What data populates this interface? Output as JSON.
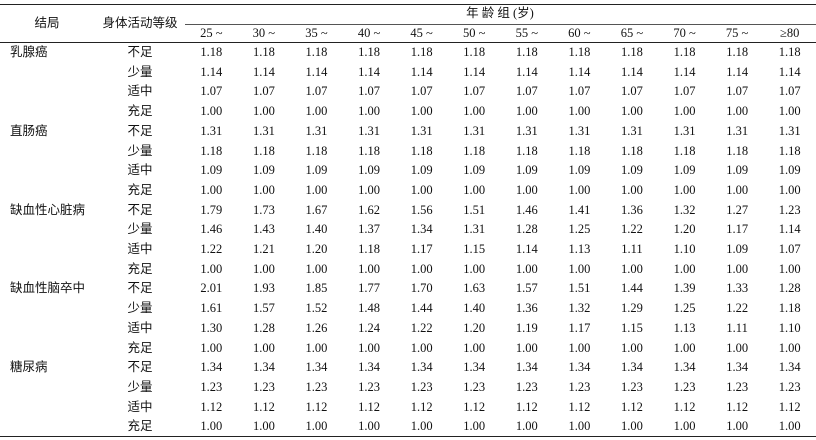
{
  "header": {
    "outcome": "结局",
    "level": "身体活动等级",
    "age_group": "年 龄 组 (岁)",
    "ages": [
      "25 ~",
      "30 ~",
      "35 ~",
      "40 ~",
      "45 ~",
      "50 ~",
      "55 ~",
      "60 ~",
      "65 ~",
      "70 ~",
      "75 ~",
      "≥80"
    ]
  },
  "table": {
    "rows": [
      {
        "outcome": "乳腺癌",
        "levels": [
          {
            "level": "不足",
            "values": [
              "1.18",
              "1.18",
              "1.18",
              "1.18",
              "1.18",
              "1.18",
              "1.18",
              "1.18",
              "1.18",
              "1.18",
              "1.18",
              "1.18"
            ]
          },
          {
            "level": "少量",
            "values": [
              "1.14",
              "1.14",
              "1.14",
              "1.14",
              "1.14",
              "1.14",
              "1.14",
              "1.14",
              "1.14",
              "1.14",
              "1.14",
              "1.14"
            ]
          },
          {
            "level": "适中",
            "values": [
              "1.07",
              "1.07",
              "1.07",
              "1.07",
              "1.07",
              "1.07",
              "1.07",
              "1.07",
              "1.07",
              "1.07",
              "1.07",
              "1.07"
            ]
          },
          {
            "level": "充足",
            "values": [
              "1.00",
              "1.00",
              "1.00",
              "1.00",
              "1.00",
              "1.00",
              "1.00",
              "1.00",
              "1.00",
              "1.00",
              "1.00",
              "1.00"
            ]
          }
        ]
      },
      {
        "outcome": "直肠癌",
        "levels": [
          {
            "level": "不足",
            "values": [
              "1.31",
              "1.31",
              "1.31",
              "1.31",
              "1.31",
              "1.31",
              "1.31",
              "1.31",
              "1.31",
              "1.31",
              "1.31",
              "1.31"
            ]
          },
          {
            "level": "少量",
            "values": [
              "1.18",
              "1.18",
              "1.18",
              "1.18",
              "1.18",
              "1.18",
              "1.18",
              "1.18",
              "1.18",
              "1.18",
              "1.18",
              "1.18"
            ]
          },
          {
            "level": "适中",
            "values": [
              "1.09",
              "1.09",
              "1.09",
              "1.09",
              "1.09",
              "1.09",
              "1.09",
              "1.09",
              "1.09",
              "1.09",
              "1.09",
              "1.09"
            ]
          },
          {
            "level": "充足",
            "values": [
              "1.00",
              "1.00",
              "1.00",
              "1.00",
              "1.00",
              "1.00",
              "1.00",
              "1.00",
              "1.00",
              "1.00",
              "1.00",
              "1.00"
            ]
          }
        ]
      },
      {
        "outcome": "缺血性心脏病",
        "levels": [
          {
            "level": "不足",
            "values": [
              "1.79",
              "1.73",
              "1.67",
              "1.62",
              "1.56",
              "1.51",
              "1.46",
              "1.41",
              "1.36",
              "1.32",
              "1.27",
              "1.23"
            ]
          },
          {
            "level": "少量",
            "values": [
              "1.46",
              "1.43",
              "1.40",
              "1.37",
              "1.34",
              "1.31",
              "1.28",
              "1.25",
              "1.22",
              "1.20",
              "1.17",
              "1.14"
            ]
          },
          {
            "level": "适中",
            "values": [
              "1.22",
              "1.21",
              "1.20",
              "1.18",
              "1.17",
              "1.15",
              "1.14",
              "1.13",
              "1.11",
              "1.10",
              "1.09",
              "1.07"
            ]
          },
          {
            "level": "充足",
            "values": [
              "1.00",
              "1.00",
              "1.00",
              "1.00",
              "1.00",
              "1.00",
              "1.00",
              "1.00",
              "1.00",
              "1.00",
              "1.00",
              "1.00"
            ]
          }
        ]
      },
      {
        "outcome": "缺血性脑卒中",
        "levels": [
          {
            "level": "不足",
            "values": [
              "2.01",
              "1.93",
              "1.85",
              "1.77",
              "1.70",
              "1.63",
              "1.57",
              "1.51",
              "1.44",
              "1.39",
              "1.33",
              "1.28"
            ]
          },
          {
            "level": "少量",
            "values": [
              "1.61",
              "1.57",
              "1.52",
              "1.48",
              "1.44",
              "1.40",
              "1.36",
              "1.32",
              "1.29",
              "1.25",
              "1.22",
              "1.18"
            ]
          },
          {
            "level": "适中",
            "values": [
              "1.30",
              "1.28",
              "1.26",
              "1.24",
              "1.22",
              "1.20",
              "1.19",
              "1.17",
              "1.15",
              "1.13",
              "1.11",
              "1.10"
            ]
          },
          {
            "level": "充足",
            "values": [
              "1.00",
              "1.00",
              "1.00",
              "1.00",
              "1.00",
              "1.00",
              "1.00",
              "1.00",
              "1.00",
              "1.00",
              "1.00",
              "1.00"
            ]
          }
        ]
      },
      {
        "outcome": "糖尿病",
        "levels": [
          {
            "level": "不足",
            "values": [
              "1.34",
              "1.34",
              "1.34",
              "1.34",
              "1.34",
              "1.34",
              "1.34",
              "1.34",
              "1.34",
              "1.34",
              "1.34",
              "1.34"
            ]
          },
          {
            "level": "少量",
            "values": [
              "1.23",
              "1.23",
              "1.23",
              "1.23",
              "1.23",
              "1.23",
              "1.23",
              "1.23",
              "1.23",
              "1.23",
              "1.23",
              "1.23"
            ]
          },
          {
            "level": "适中",
            "values": [
              "1.12",
              "1.12",
              "1.12",
              "1.12",
              "1.12",
              "1.12",
              "1.12",
              "1.12",
              "1.12",
              "1.12",
              "1.12",
              "1.12"
            ]
          },
          {
            "level": "充足",
            "values": [
              "1.00",
              "1.00",
              "1.00",
              "1.00",
              "1.00",
              "1.00",
              "1.00",
              "1.00",
              "1.00",
              "1.00",
              "1.00",
              "1.00"
            ]
          }
        ]
      }
    ]
  }
}
